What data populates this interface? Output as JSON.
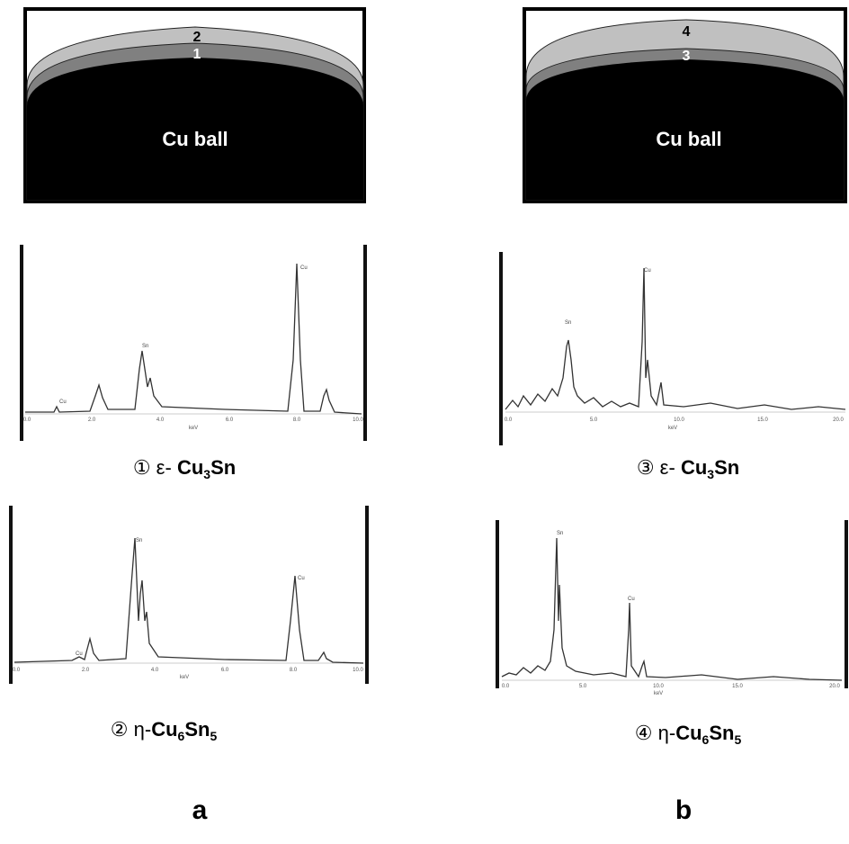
{
  "panel_a": {
    "label": "a",
    "diagram": {
      "ball": "Cu ball",
      "layers": [
        "1",
        "2"
      ]
    },
    "spectra": [
      {
        "peaks": [
          "Cu",
          "Sn",
          "Cu"
        ],
        "x_label": "keV",
        "ticks": [
          "0.0",
          "2.0",
          "4.0",
          "6.0",
          "8.0",
          "10.0"
        ],
        "caption": {
          "marker": "①",
          "phase": "ε-",
          "formula": [
            {
              "el": "Cu",
              "sub": "3"
            },
            {
              "el": "Sn"
            }
          ]
        }
      },
      {
        "peaks": [
          "Cu",
          "Sn",
          "Cu"
        ],
        "x_label": "keV",
        "ticks": [
          "0.0",
          "2.0",
          "4.0",
          "6.0",
          "8.0",
          "10.0"
        ],
        "caption": {
          "marker": "②",
          "phase": "η-",
          "formula": [
            {
              "el": "Cu",
              "sub": "6"
            },
            {
              "el": "Sn",
              "sub": "5"
            }
          ]
        }
      }
    ]
  },
  "panel_b": {
    "label": "b",
    "diagram": {
      "ball": "Cu ball",
      "layers": [
        "3",
        "4"
      ]
    },
    "spectra": [
      {
        "peaks": [
          "Sn",
          "Cu"
        ],
        "x_label": "keV",
        "ticks": [
          "0.0",
          "5.0",
          "10.0",
          "15.0",
          "20.0"
        ],
        "caption": {
          "marker": "③",
          "phase": "ε-",
          "formula": [
            {
              "el": "Cu",
              "sub": "3"
            },
            {
              "el": "Sn"
            }
          ]
        }
      },
      {
        "peaks": [
          "Sn",
          "Cu"
        ],
        "x_label": "keV",
        "ticks": [
          "0.0",
          "5.0",
          "10.0",
          "15.0",
          "20.0"
        ],
        "caption": {
          "marker": "④",
          "phase": "η-",
          "formula": [
            {
              "el": "Cu",
              "sub": "6"
            },
            {
              "el": "Sn",
              "sub": "5"
            }
          ]
        }
      }
    ]
  }
}
